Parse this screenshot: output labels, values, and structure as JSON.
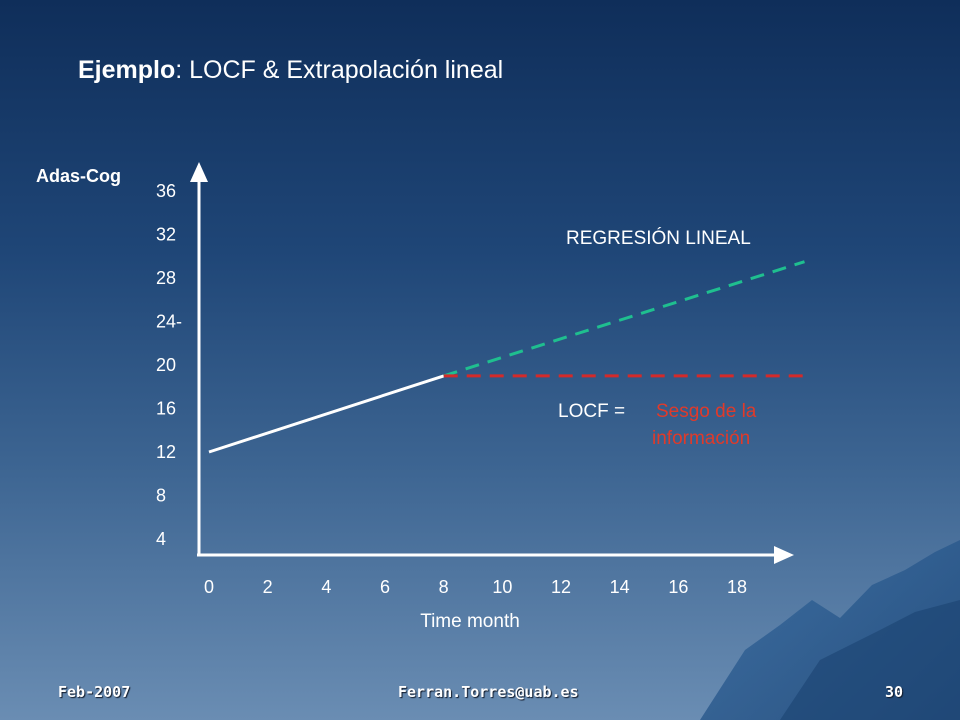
{
  "slide": {
    "title_bold": "Ejemplo",
    "title_rest": ": LOCF & Extrapolación lineal",
    "footer_left": "Feb-2007",
    "footer_center": "Ferran.Torres@uab.es",
    "footer_right": "30"
  },
  "chart_data": {
    "type": "line",
    "ylabel": "Adas-Cog",
    "xlabel": "Time month",
    "xlim": [
      0,
      19.5
    ],
    "ylim": [
      2,
      38
    ],
    "x_ticks": [
      "0",
      "2",
      "4",
      "6",
      "8",
      "10",
      "12",
      "14",
      "16",
      "18"
    ],
    "y_ticks": [
      "36",
      "32",
      "28",
      "24-",
      "20",
      "16",
      "12",
      "8",
      "4"
    ],
    "y_tick_values": [
      36,
      32,
      28,
      24,
      20,
      16,
      12,
      8,
      4
    ],
    "series": [
      {
        "style": "solid",
        "color": "#ffffff",
        "x": [
          0,
          8
        ],
        "y": [
          12,
          19
        ]
      },
      {
        "name": "REGRESIÓN LINEAL",
        "style": "dashed",
        "color": "#1fbf8f",
        "x": [
          8,
          20.3
        ],
        "y": [
          19,
          29.5
        ]
      },
      {
        "style": "dashed",
        "color": "#d42a2a",
        "x": [
          8,
          20.5
        ],
        "y": [
          19,
          19
        ]
      }
    ],
    "annotations": {
      "regression_label": "REGRESIÓN LINEAL",
      "locf_label": "LOCF = ",
      "bias_line1": "Sesgo de la",
      "bias_line2": "información"
    }
  }
}
